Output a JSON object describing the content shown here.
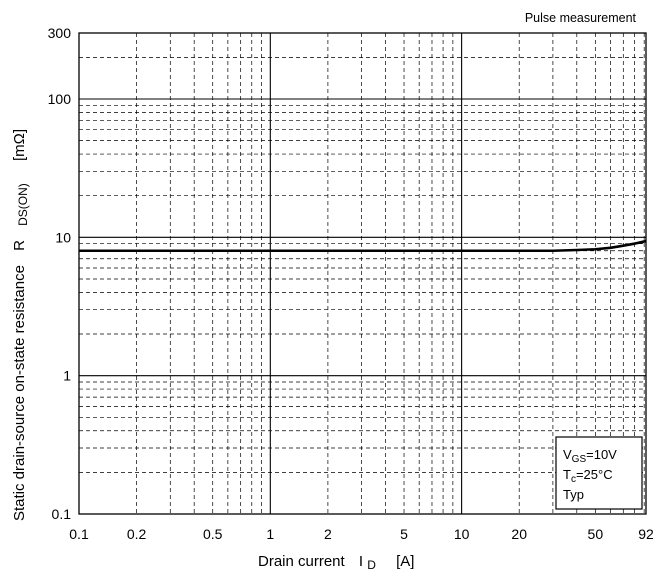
{
  "chart_data": {
    "type": "line",
    "note": "Pulse measurement",
    "xlabel": {
      "text": "Drain current",
      "symbol": "I",
      "subscript": "D",
      "unit": "[A]"
    },
    "ylabel": {
      "text": "Static drain-source on-state resistance",
      "symbol": "R",
      "subscript": "DS(ON)",
      "unit": "[mΩ]"
    },
    "x_scale": "log",
    "y_scale": "log",
    "xlim": [
      0.1,
      92
    ],
    "ylim": [
      0.1,
      300
    ],
    "x_ticks": [
      {
        "value": 0.1,
        "label": "0.1"
      },
      {
        "value": 0.2,
        "label": "0.2"
      },
      {
        "value": 0.5,
        "label": "0.5"
      },
      {
        "value": 1,
        "label": "1"
      },
      {
        "value": 2,
        "label": "2"
      },
      {
        "value": 5,
        "label": "5"
      },
      {
        "value": 10,
        "label": "10"
      },
      {
        "value": 20,
        "label": "20"
      },
      {
        "value": 50,
        "label": "50"
      },
      {
        "value": 92,
        "label": "92"
      }
    ],
    "y_ticks": [
      {
        "value": 0.1,
        "label": "0.1"
      },
      {
        "value": 1,
        "label": "1"
      },
      {
        "value": 10,
        "label": "10"
      },
      {
        "value": 100,
        "label": "100"
      },
      {
        "value": 300,
        "label": "300"
      }
    ],
    "grid": true,
    "conditions": {
      "vgs": {
        "symbol": "V",
        "subscript": "GS",
        "value": "=10V"
      },
      "tc": {
        "symbol": "T",
        "subscript": "c",
        "value": "=25°C"
      },
      "typ": "Typ"
    },
    "legend_position": "bottom-right",
    "series": [
      {
        "color": "#000000",
        "x": [
          0.1,
          0.2,
          0.5,
          1,
          2,
          5,
          10,
          20,
          30,
          40,
          50,
          60,
          70,
          80,
          92
        ],
        "y": [
          8.0,
          8.0,
          8.0,
          8.0,
          8.0,
          8.0,
          8.0,
          8.0,
          8.0,
          8.1,
          8.2,
          8.4,
          8.7,
          9.0,
          9.4
        ]
      }
    ]
  }
}
